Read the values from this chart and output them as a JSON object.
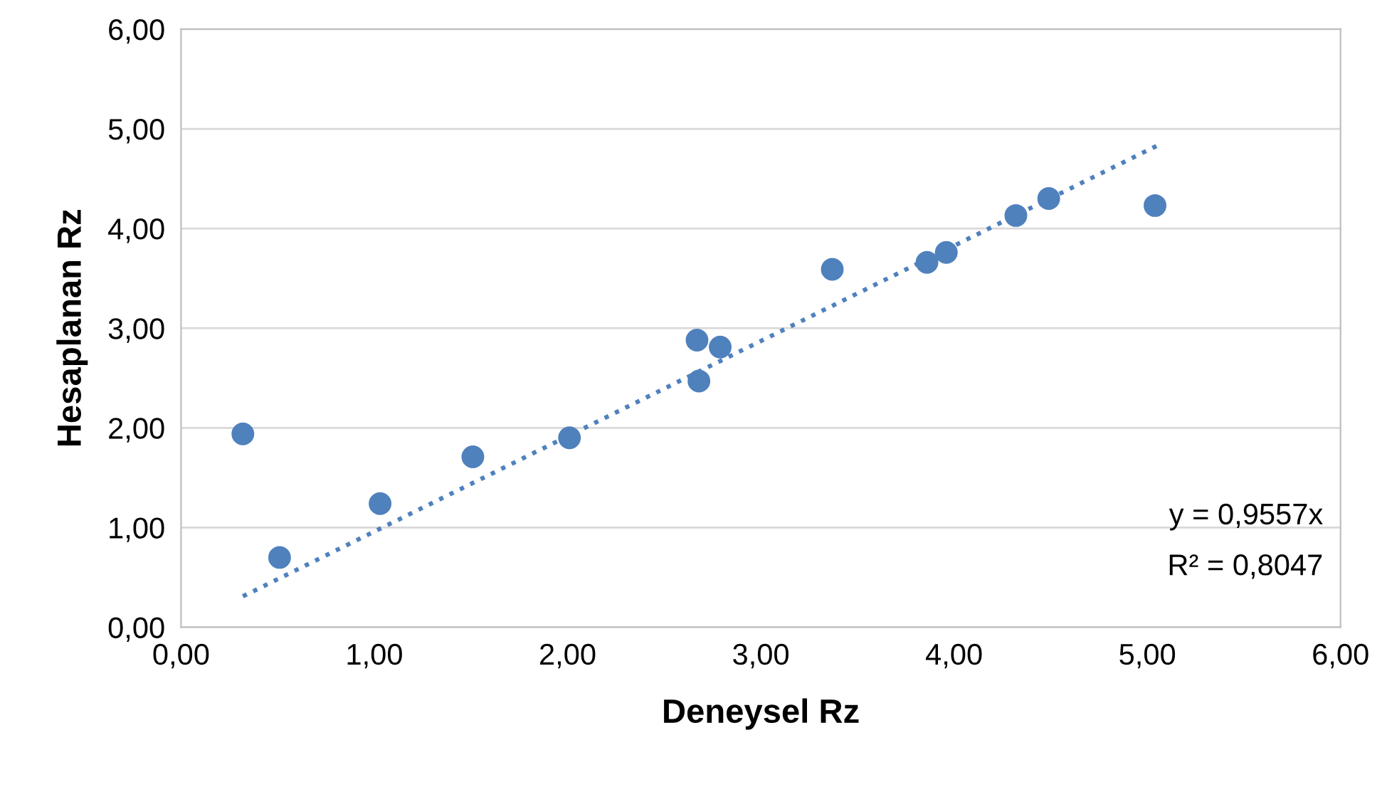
{
  "chart_data": {
    "type": "scatter",
    "xlabel": "Deneysel Rz",
    "ylabel": "Hesaplanan Rz",
    "xlim": [
      0,
      6
    ],
    "ylim": [
      0,
      6
    ],
    "xticks": [
      {
        "value": 0,
        "label": "0,00"
      },
      {
        "value": 1,
        "label": "1,00"
      },
      {
        "value": 2,
        "label": "2,00"
      },
      {
        "value": 3,
        "label": "3,00"
      },
      {
        "value": 4,
        "label": "4,00"
      },
      {
        "value": 5,
        "label": "5,00"
      },
      {
        "value": 6,
        "label": "6,00"
      }
    ],
    "yticks": [
      {
        "value": 0,
        "label": "0,00"
      },
      {
        "value": 1,
        "label": "1,00"
      },
      {
        "value": 2,
        "label": "2,00"
      },
      {
        "value": 3,
        "label": "3,00"
      },
      {
        "value": 4,
        "label": "4,00"
      },
      {
        "value": 5,
        "label": "5,00"
      },
      {
        "value": 6,
        "label": "6,00"
      }
    ],
    "grid": "y",
    "legend": false,
    "series": [
      {
        "color": "#4f81bd",
        "marker": "circle",
        "x": [
          0.32,
          0.51,
          1.03,
          1.51,
          2.01,
          2.67,
          2.68,
          2.79,
          3.37,
          3.86,
          3.96,
          4.32,
          4.49,
          5.04
        ],
        "values": [
          1.94,
          0.7,
          1.24,
          1.71,
          1.9,
          2.88,
          2.47,
          2.81,
          3.59,
          3.66,
          3.76,
          4.13,
          4.3,
          4.23
        ]
      },
      {
        "type": "line",
        "color": "#4f81bd",
        "marker": "none",
        "line_style": "dotted",
        "x": [
          0.32,
          5.05
        ],
        "values": [
          0.31,
          4.83
        ]
      }
    ],
    "annotations": [
      "y = 0,9557x",
      "R² = 0,8047"
    ]
  }
}
